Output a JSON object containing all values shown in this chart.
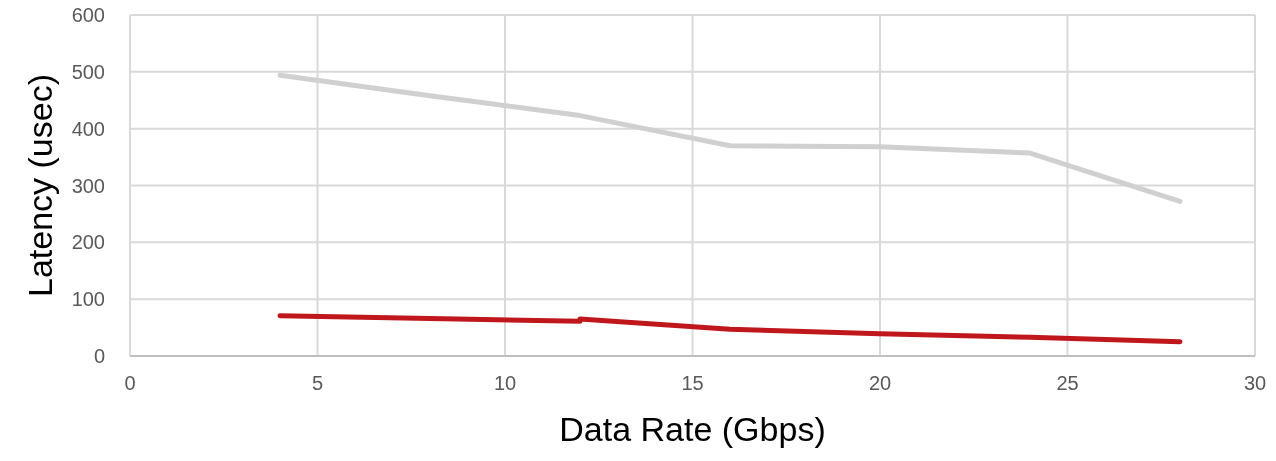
{
  "chart_data": {
    "type": "line",
    "xlabel": "Data Rate (Gbps)",
    "ylabel": "Latency (usec)",
    "xlim": [
      0,
      30
    ],
    "xticks": [
      0,
      5,
      10,
      15,
      20,
      25,
      30
    ],
    "ylim": [
      0,
      600
    ],
    "yticks": [
      0,
      100,
      200,
      300,
      400,
      500,
      600
    ],
    "grid": true,
    "line_style": "solid",
    "series": [
      {
        "color": "#d0d0d0",
        "x": [
          4,
          8,
          12,
          16,
          20,
          24,
          28
        ],
        "values": [
          494,
          458,
          423,
          370,
          368,
          357,
          272
        ]
      },
      {
        "color": "#c0171c",
        "x": [
          4,
          8,
          12,
          12,
          16,
          20,
          24,
          28
        ],
        "values": [
          71,
          66,
          61,
          65,
          47,
          39,
          33,
          25
        ]
      }
    ]
  }
}
